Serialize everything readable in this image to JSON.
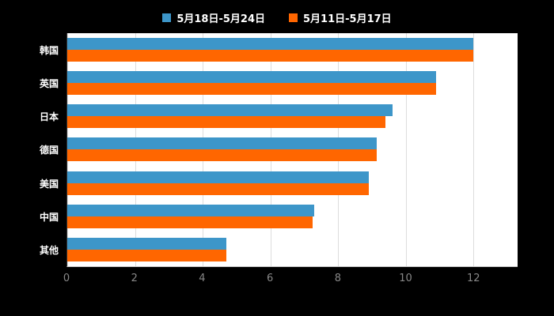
{
  "chart_data": {
    "type": "bar",
    "orientation": "horizontal",
    "title": "",
    "xlabel": "",
    "ylabel": "",
    "categories": [
      "韩国",
      "英国",
      "日本",
      "德国",
      "美国",
      "中国",
      "其他"
    ],
    "series": [
      {
        "name": "5月18日-5月24日",
        "color": "#3d96c9",
        "values": [
          12.0,
          10.9,
          9.6,
          9.15,
          8.9,
          7.3,
          4.7
        ]
      },
      {
        "name": "5月11日-5月17日",
        "color": "#ff6600",
        "values": [
          12.0,
          10.9,
          9.4,
          9.15,
          8.9,
          7.25,
          4.7
        ]
      }
    ],
    "xlim": [
      0,
      13.3
    ],
    "xticks": [
      0,
      2,
      4,
      6,
      8,
      10,
      12
    ],
    "grid": true,
    "legend_position": "top",
    "plot_background": "#ffffff",
    "page_background": "#000000",
    "grid_color": "#dddddd",
    "axis_color": "#333333",
    "tick_label_color": "#888888",
    "category_label_color": "#ffffff"
  }
}
